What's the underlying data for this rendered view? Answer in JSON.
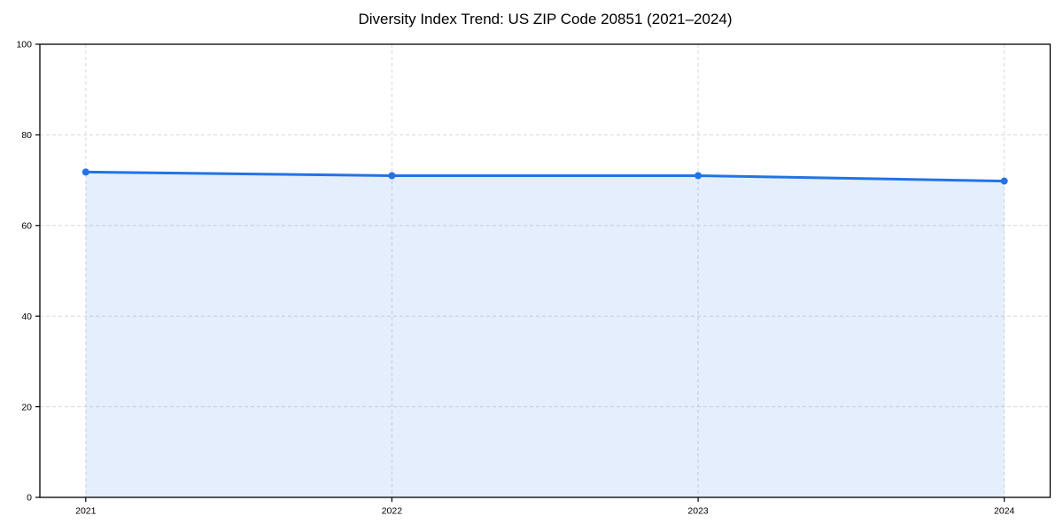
{
  "chart_data": {
    "type": "area",
    "title": "Diversity Index Trend: US ZIP Code 20851 (2021–2024)",
    "categories": [
      "2021",
      "2022",
      "2023",
      "2024"
    ],
    "x": [
      2021,
      2022,
      2023,
      2024
    ],
    "series": [
      {
        "name": "Diversity Index",
        "values": [
          71.8,
          71.0,
          71.0,
          69.8
        ]
      }
    ],
    "xlabel": "",
    "ylabel": "",
    "xlim": [
      2020.85,
      2024.15
    ],
    "ylim": [
      0,
      100
    ],
    "yticks": [
      0,
      20,
      40,
      60,
      80,
      100
    ],
    "grid": true,
    "grid_style": "dashed",
    "legend_position": "none",
    "marker": "circle",
    "fill_opacity": 0.12,
    "colors": {
      "line": "#2273e6",
      "marker": "#2273e6",
      "fill": "#2273e6",
      "grid": "#d8d8d8",
      "spine": "#000000",
      "tick_label": "#000000",
      "title": "#000000",
      "background": "#ffffff"
    }
  }
}
